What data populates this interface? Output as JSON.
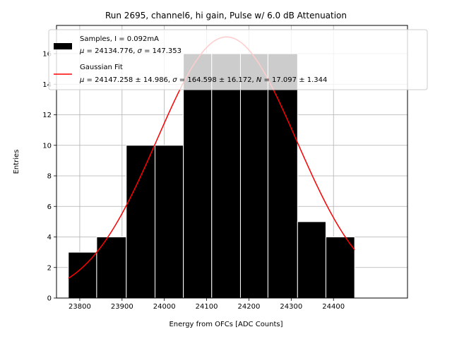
{
  "chart_data": {
    "type": "bar",
    "title": "Run 2695, channel6, hi gain, Pulse w/ 6.0 dB Attenuation",
    "xlabel": "Energy from OFCs [ADC Counts]",
    "ylabel": "Entries",
    "xlim": [
      23745,
      24575
    ],
    "ylim": [
      0,
      17.85
    ],
    "xticks": [
      23800,
      23900,
      24000,
      24100,
      24200,
      24300,
      24400
    ],
    "yticks": [
      0,
      2,
      4,
      6,
      8,
      10,
      12,
      14,
      16
    ],
    "grid": true,
    "legend_position": "top-right",
    "bins": [
      {
        "x0": 23773,
        "x1": 23840,
        "count": 3
      },
      {
        "x0": 23840,
        "x1": 23910,
        "count": 4
      },
      {
        "x0": 23910,
        "x1": 23978,
        "count": 10
      },
      {
        "x0": 23978,
        "x1": 24045,
        "count": 10
      },
      {
        "x0": 24045,
        "x1": 24112,
        "count": 16
      },
      {
        "x0": 24112,
        "x1": 24180,
        "count": 16
      },
      {
        "x0": 24180,
        "x1": 24245,
        "count": 16
      },
      {
        "x0": 24245,
        "x1": 24315,
        "count": 16
      },
      {
        "x0": 24315,
        "x1": 24382,
        "count": 5
      },
      {
        "x0": 24382,
        "x1": 24450,
        "count": 4
      }
    ],
    "fit": {
      "mu": 24147.258,
      "sigma": 164.598,
      "N": 17.097,
      "x_range": [
        23773,
        24450
      ]
    },
    "series": [
      {
        "name": "Samples, I = 0.092mA",
        "color": "#000000",
        "kind": "histogram"
      },
      {
        "name": "Gaussian Fit",
        "color": "#ff0000",
        "kind": "line"
      }
    ]
  },
  "legend": {
    "samples_label": "Samples, I = 0.092mA",
    "samples_stats": {
      "mu_sym": "μ",
      "mu_val": " = 24134.776, ",
      "sigma_sym": "σ",
      "sigma_val": " = 147.353"
    },
    "fit_label": "Gaussian Fit",
    "fit_stats": {
      "mu_sym": "μ",
      "mu_val": " = 24147.258 ± 14.986, ",
      "sigma_sym": "σ",
      "sigma_val": " = 164.598 ± 16.172, ",
      "n_sym": "N",
      "n_val": " = 17.097 ± 1.344"
    }
  },
  "colors": {
    "bars": "#000000",
    "bar_edge": "#ffffff",
    "fit_line": "#ff0000",
    "grid": "#b0b0b0"
  }
}
